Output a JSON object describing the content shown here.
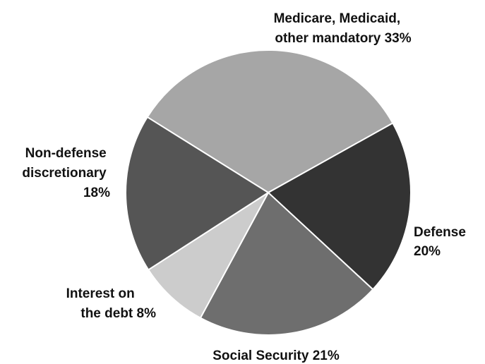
{
  "chart_data": {
    "type": "pie",
    "title": "",
    "slices": [
      {
        "name": "Medicare, Medicaid, other mandatory",
        "value": 33,
        "color": "#a6a6a6",
        "label_lines": [
          "Medicare, Medicaid,",
          "other mandatory  33%"
        ]
      },
      {
        "name": "Defense",
        "value": 20,
        "color": "#333333",
        "label_lines": [
          "Defense",
          "20%"
        ]
      },
      {
        "name": "Social Security",
        "value": 21,
        "color": "#6e6e6e",
        "label_lines": [
          "Social Security  21%"
        ]
      },
      {
        "name": "Interest on the debt",
        "value": 8,
        "color": "#cccccc",
        "label_lines": [
          "Interest on",
          "the debt  8%"
        ]
      },
      {
        "name": "Non-defense discretionary",
        "value": 18,
        "color": "#555555",
        "label_lines": [
          "Non-defense",
          "discretionary",
          "18%"
        ]
      }
    ]
  }
}
